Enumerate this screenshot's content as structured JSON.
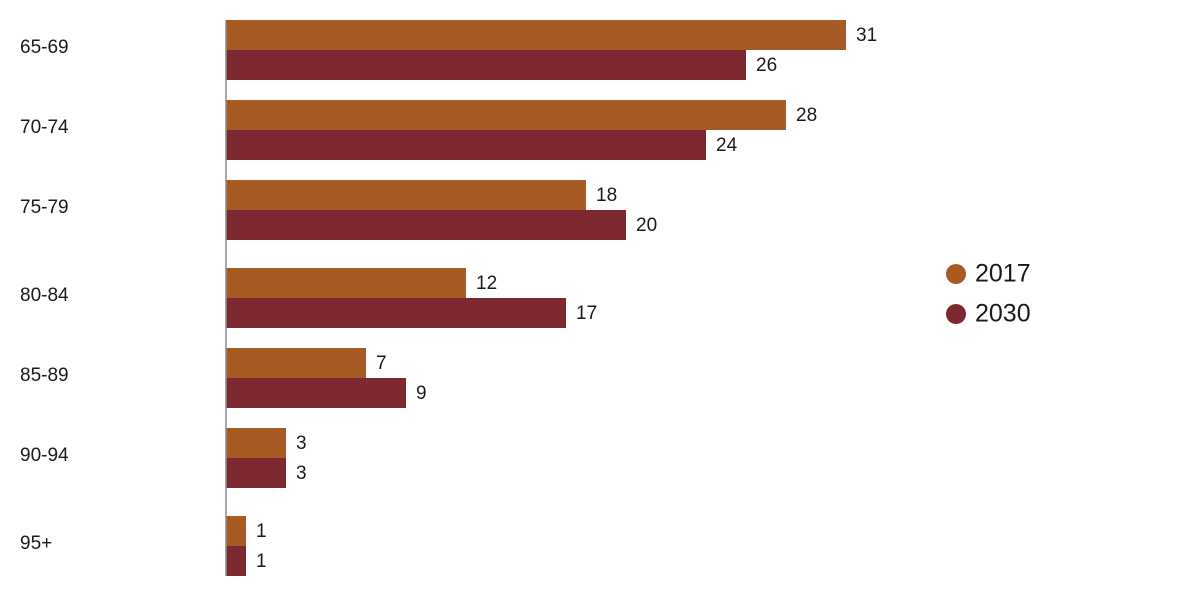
{
  "chart_data": {
    "type": "bar",
    "orientation": "horizontal",
    "categories": [
      "65-69",
      "70-74",
      "75-79",
      "80-84",
      "85-89",
      "90-94",
      "95+"
    ],
    "series": [
      {
        "name": "2017",
        "values": [
          31,
          28,
          18,
          12,
          7,
          3,
          1
        ],
        "color": "#a85a24"
      },
      {
        "name": "2030",
        "values": [
          26,
          24,
          20,
          17,
          9,
          3,
          1
        ],
        "color": "#7e2832"
      }
    ],
    "title": "",
    "xlabel": "",
    "ylabel": "",
    "xlim": [
      0,
      31
    ],
    "grid": false,
    "data_labels": true,
    "legend_position": "right"
  }
}
